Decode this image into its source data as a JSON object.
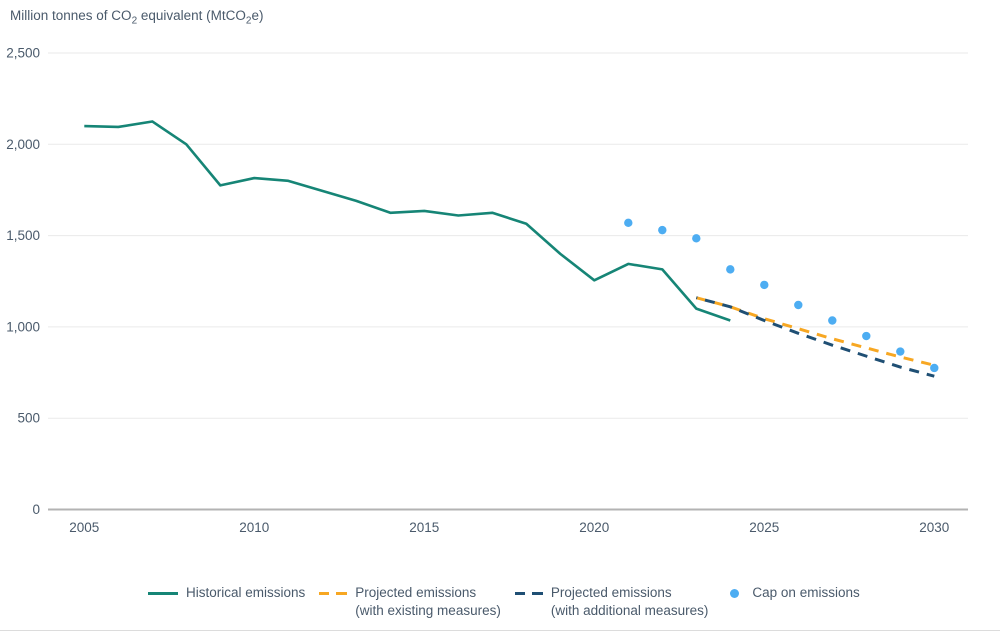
{
  "title": {
    "pre": "Million tonnes of CO",
    "sub1": "2",
    "mid": " equivalent (MtCO",
    "sub2": "2",
    "post": "e)"
  },
  "colors": {
    "historical_teal": "#168576",
    "projected_existing_orange": "#F7A722",
    "projected_additional_navy": "#1F4F74",
    "cap_blue": "#4DADF2",
    "text": "#4a5a6b",
    "gridline": "#eaeaea",
    "axis_line": "#b3b3b3",
    "divider": "#dcdcdc"
  },
  "legend": [
    {
      "type": "solid-line",
      "color": "#168576",
      "label_line1": "Historical emissions",
      "label_line2": ""
    },
    {
      "type": "dashed-line",
      "color": "#F7A722",
      "label_line1": "Projected emissions",
      "label_line2": "(with existing measures)"
    },
    {
      "type": "dashed-line",
      "color": "#1F4F74",
      "label_line1": "Projected emissions",
      "label_line2": "(with additional measures)"
    },
    {
      "type": "dot",
      "color": "#4DADF2",
      "label_line1": "Cap on emissions",
      "label_line2": ""
    }
  ],
  "chart_data": {
    "type": "line",
    "title": "Million tonnes of CO2 equivalent (MtCO2e)",
    "grid": "horizontal-only",
    "legend_position": "bottom",
    "x_axis": {
      "ticks": [
        2005,
        2010,
        2015,
        2020,
        2025,
        2030
      ],
      "labels": [
        "2005",
        "2010",
        "2015",
        "2020",
        "2025",
        "2030"
      ],
      "range": [
        2004,
        2031
      ]
    },
    "y_axis": {
      "ticks": [
        0,
        500,
        1000,
        1500,
        2000,
        2500
      ],
      "labels": [
        "0",
        "500",
        "1,000",
        "1,500",
        "2,000",
        "2,500"
      ],
      "range": [
        0,
        2500
      ]
    },
    "series": [
      {
        "name": "Historical emissions",
        "style": "solid",
        "color": "#168576",
        "x": [
          2005,
          2006,
          2007,
          2008,
          2009,
          2010,
          2011,
          2012,
          2013,
          2014,
          2015,
          2016,
          2017,
          2018,
          2019,
          2020,
          2021,
          2022,
          2023,
          2024
        ],
        "values": [
          2100,
          2095,
          2125,
          2000,
          1775,
          1815,
          1800,
          1745,
          1690,
          1625,
          1635,
          1610,
          1625,
          1565,
          1400,
          1255,
          1345,
          1315,
          1100,
          1035
        ]
      },
      {
        "name": "Projected emissions (with existing measures)",
        "style": "dashed",
        "color": "#F7A722",
        "x": [
          2023,
          2024,
          2025,
          2026,
          2027,
          2028,
          2029,
          2030
        ],
        "values": [
          1160,
          1110,
          1045,
          990,
          935,
          885,
          835,
          790
        ]
      },
      {
        "name": "Projected emissions (with additional measures)",
        "style": "dashed",
        "color": "#1F4F74",
        "x": [
          2023,
          2024,
          2025,
          2026,
          2027,
          2028,
          2029,
          2030
        ],
        "values": [
          1160,
          1110,
          1035,
          965,
          900,
          840,
          780,
          730
        ]
      },
      {
        "name": "Cap on emissions",
        "style": "points",
        "color": "#4DADF2",
        "x": [
          2021,
          2022,
          2023,
          2024,
          2025,
          2026,
          2027,
          2028,
          2029,
          2030
        ],
        "values": [
          1570,
          1530,
          1485,
          1315,
          1230,
          1120,
          1035,
          950,
          865,
          775
        ]
      }
    ]
  }
}
